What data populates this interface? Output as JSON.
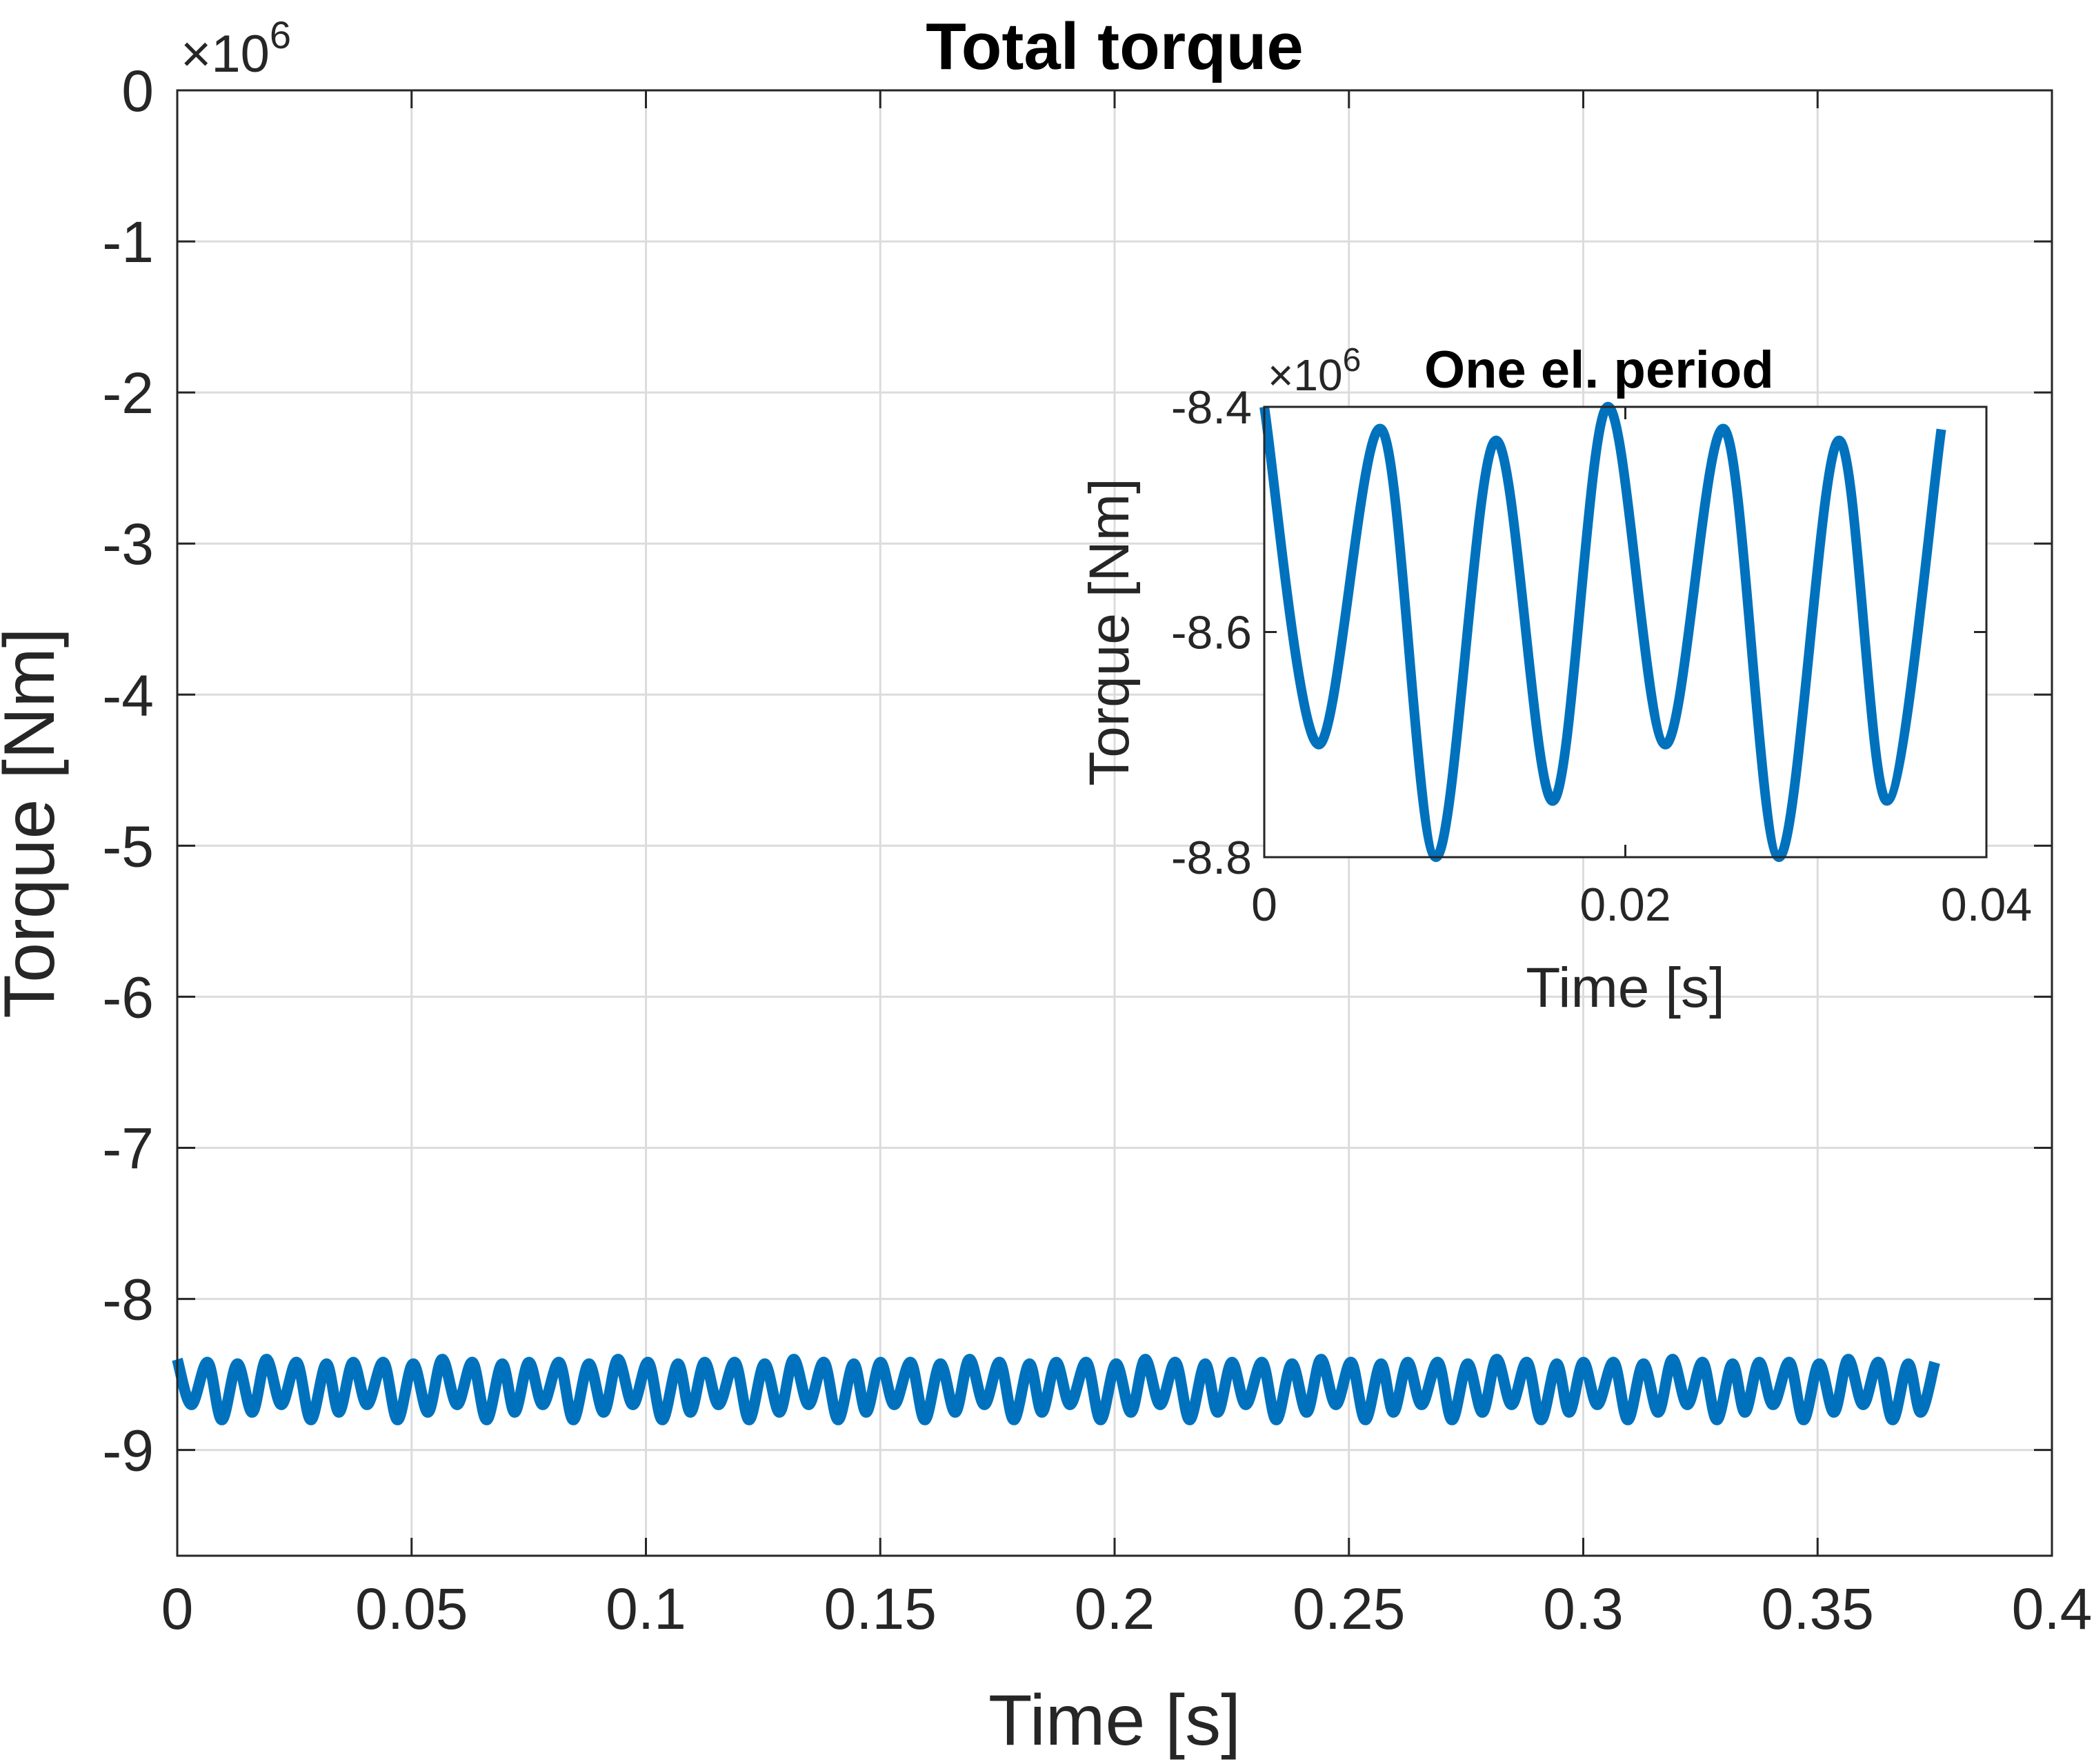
{
  "colors": {
    "series": "#0072BD",
    "axis": "#262626",
    "grid": "#dcdcdc",
    "background": "#ffffff"
  },
  "chart_data": [
    {
      "id": "main",
      "type": "line",
      "title": "Total torque",
      "xlabel": "Time [s]",
      "ylabel": "Torque [Nm]",
      "y_exponent_label": "×10^6",
      "y_exponent_base": "×10",
      "y_exponent_power": "6",
      "xlim": [
        0,
        0.4
      ],
      "ylim": [
        -9.7,
        0
      ],
      "xticks": [
        0,
        0.05,
        0.1,
        0.15,
        0.2,
        0.25,
        0.3,
        0.35,
        0.4
      ],
      "xtick_labels": [
        "0",
        "0.05",
        "0.1",
        "0.15",
        "0.2",
        "0.25",
        "0.3",
        "0.35",
        "0.4"
      ],
      "yticks": [
        0,
        -1,
        -2,
        -3,
        -4,
        -5,
        -6,
        -7,
        -8,
        -9
      ],
      "ytick_labels": [
        "0",
        "-1",
        "-2",
        "-3",
        "-4",
        "-5",
        "-6",
        "-7",
        "-8",
        "-9"
      ],
      "grid": true,
      "series": [
        {
          "color": "#0072BD",
          "x_range": [
            0,
            0.375
          ],
          "y_range": [
            -8.8,
            -8.4
          ],
          "waveform": "periodic ripple, 10 electrical periods repeating the inset pattern"
        }
      ]
    },
    {
      "id": "inset",
      "type": "line",
      "title": "One el. period",
      "xlabel": "Time [s]",
      "ylabel": "Torque [Nm]",
      "y_exponent_label": "×10^6",
      "y_exponent_base": "×10",
      "y_exponent_power": "6",
      "xlim": [
        0,
        0.04
      ],
      "ylim": [
        -8.8,
        -8.4
      ],
      "xticks": [
        0,
        0.02,
        0.04
      ],
      "xtick_labels": [
        "0",
        "0.02",
        "0.04"
      ],
      "yticks": [
        -8.4,
        -8.6,
        -8.8
      ],
      "ytick_labels": [
        "-8.4",
        "-8.6",
        "-8.8"
      ],
      "grid": false,
      "series": [
        {
          "color": "#0072BD",
          "x": [
            0,
            0.003,
            0.0065,
            0.0095,
            0.0128,
            0.016,
            0.019,
            0.0222,
            0.0255,
            0.0285,
            0.0318,
            0.0345,
            0.0375
          ],
          "y": [
            -8.4,
            -8.7,
            -8.42,
            -8.8,
            -8.43,
            -8.75,
            -8.4,
            -8.7,
            -8.42,
            -8.8,
            -8.43,
            -8.75,
            -8.42
          ]
        }
      ]
    }
  ]
}
